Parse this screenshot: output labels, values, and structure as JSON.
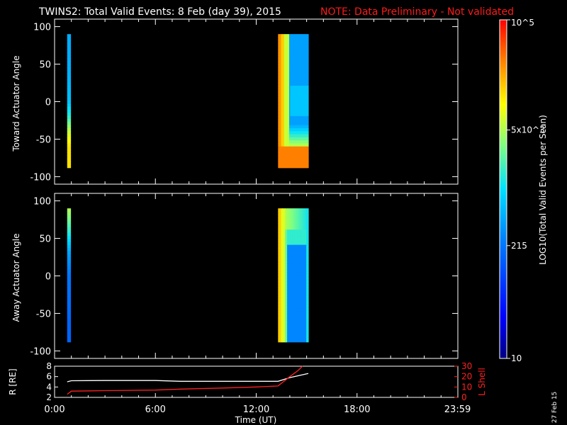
{
  "title": "TWINS2: Total Valid Events:  8 Feb (day  39), 2015",
  "note": "NOTE: Data Preliminary - Not validated",
  "date_stamp": "27 Feb 15",
  "colorbar": {
    "label": "LOG10(Total Valid Events per Scan)",
    "ticks": [
      "10",
      "215",
      "5x10^3",
      "10^5"
    ],
    "tick_values": [
      10,
      215,
      5000,
      100000
    ]
  },
  "chart_data": [
    {
      "type": "heatmap",
      "panel": "toward",
      "ylabel": "Toward Actuator Angle",
      "ylim": [
        -110,
        110
      ],
      "yticks": [
        100,
        50,
        0,
        -50,
        -100
      ],
      "xlim": [
        0,
        24
      ],
      "bands": [
        {
          "start": 0.75,
          "end": 0.95,
          "angles": [
            90,
            60,
            30,
            0,
            -20,
            -40,
            -60,
            -88
          ],
          "levels": [
            0.42,
            0.42,
            0.43,
            0.45,
            0.55,
            0.7,
            0.78,
            0.78
          ]
        },
        {
          "start": 13.3,
          "end": 15.1,
          "angles": [
            90,
            60,
            30,
            0,
            -30,
            -60,
            -88
          ],
          "profile_note": "high near start, lower later"
        }
      ]
    },
    {
      "type": "heatmap",
      "panel": "away",
      "ylabel": "Away Actuator Angle",
      "ylim": [
        -110,
        110
      ],
      "yticks": [
        100,
        50,
        0,
        -50,
        -100
      ],
      "xlim": [
        0,
        24
      ],
      "bands": [
        {
          "start": 0.75,
          "end": 0.95,
          "angles": [
            90,
            60,
            30,
            0,
            -30,
            -60,
            -88
          ],
          "levels": [
            0.68,
            0.55,
            0.4,
            0.33,
            0.32,
            0.3,
            0.3
          ]
        },
        {
          "start": 13.3,
          "end": 15.1,
          "angles": [
            90,
            60,
            30,
            0,
            -30,
            -60,
            -88
          ],
          "profile_note": "high near start and top, lower later"
        }
      ]
    },
    {
      "type": "line",
      "panel": "orbit",
      "ylabel": "R [RE]",
      "y2label": "L Shell",
      "xlabel": "Time (UT)",
      "xlim": [
        0,
        24
      ],
      "xticks": [
        "0:00",
        "6:00",
        "12:00",
        "18:00",
        "23:59"
      ],
      "xtick_values": [
        0,
        6,
        12,
        18,
        23.98
      ],
      "ylim": [
        2,
        8
      ],
      "yticks": [
        8,
        6,
        4,
        2
      ],
      "y2lim": [
        0,
        30
      ],
      "y2ticks": [
        30,
        20,
        10,
        0
      ],
      "series": [
        {
          "axis": "left",
          "color": "#ffffff",
          "x": [
            0.75,
            1.0,
            3.0,
            6.0,
            7.5,
            10.0,
            12.0,
            13.3,
            14.0,
            15.1
          ],
          "values": [
            5.0,
            5.2,
            5.25,
            5.25,
            5.1,
            5.1,
            5.1,
            5.1,
            5.8,
            6.6
          ]
        },
        {
          "axis": "right",
          "color": "#ff2020",
          "x": [
            0.75,
            1.0,
            3.0,
            6.0,
            7.5,
            10.0,
            12.0,
            13.3,
            14.0,
            14.5,
            14.75
          ],
          "values": [
            3.0,
            6.0,
            6.5,
            7.0,
            8.0,
            9.0,
            10.0,
            11.0,
            20.0,
            26.0,
            30.0
          ]
        }
      ]
    }
  ]
}
